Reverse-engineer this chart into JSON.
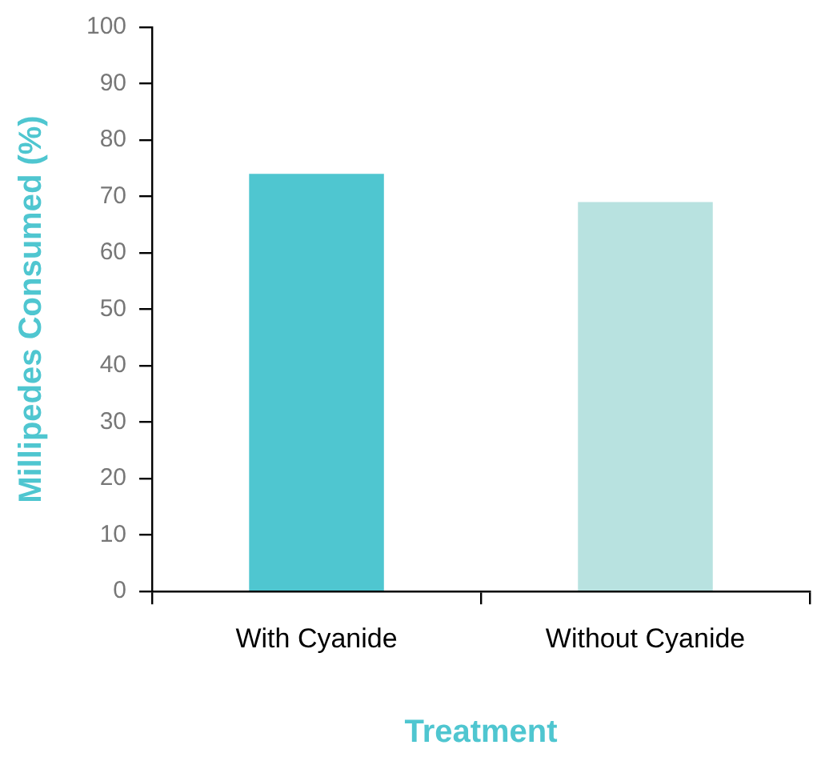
{
  "chart_data": {
    "type": "bar",
    "xlabel": "Treatment",
    "ylabel": "Millipedes Consumed (%)",
    "categories": [
      "With Cyanide",
      "Without Cyanide"
    ],
    "values": [
      74,
      69
    ],
    "colors": [
      "#4fc6d0",
      "#b8e2e0"
    ],
    "ylim": [
      0,
      100
    ],
    "yticks": [
      0,
      10,
      20,
      30,
      40,
      50,
      60,
      70,
      80,
      90,
      100
    ],
    "grid": false
  }
}
